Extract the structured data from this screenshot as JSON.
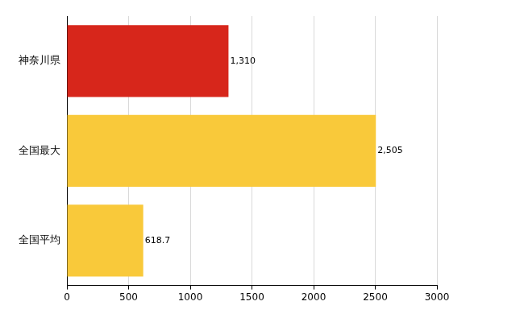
{
  "chart_data": {
    "type": "bar",
    "orientation": "horizontal",
    "categories": [
      "神奈川県",
      "全国最大",
      "全国平均"
    ],
    "values": [
      1310,
      2505,
      618.7
    ],
    "value_labels": [
      "1,310",
      "2,505",
      "618.7"
    ],
    "colors": [
      "#d7261b",
      "#f9c93a",
      "#f9c93a"
    ],
    "xlim": [
      0,
      3000
    ],
    "xticks": [
      0,
      500,
      1000,
      1500,
      2000,
      2500,
      3000
    ],
    "grid": true,
    "data_labels": true
  }
}
